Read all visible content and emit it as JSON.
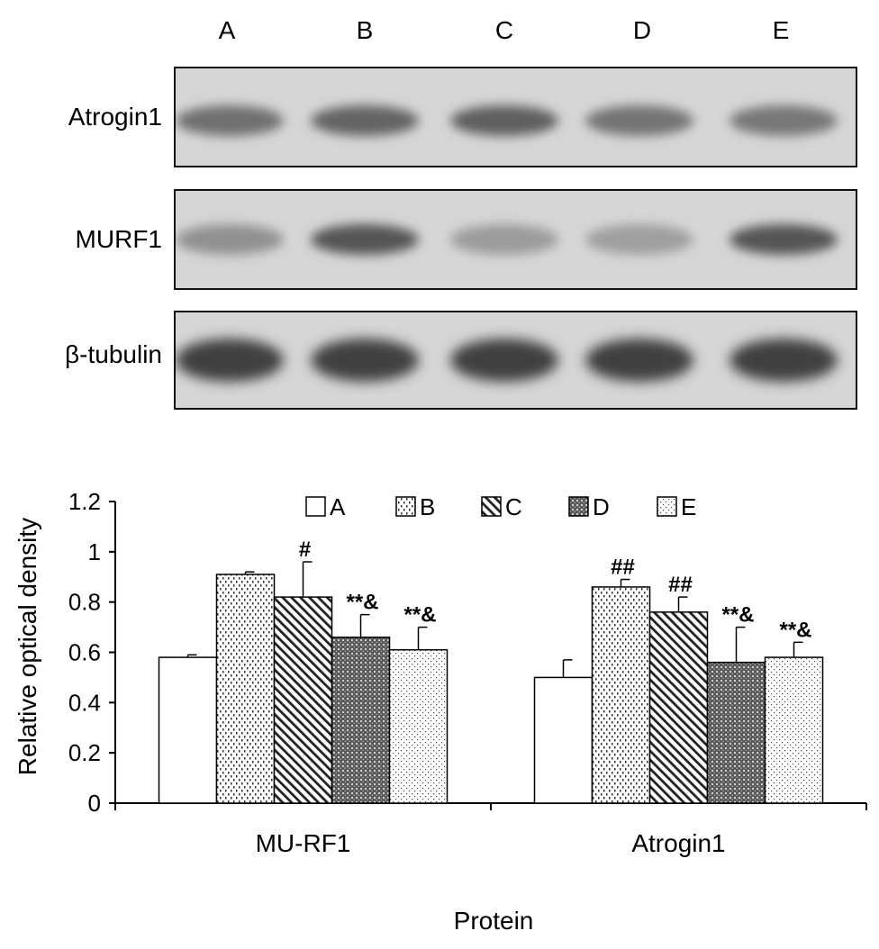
{
  "blot": {
    "lanes": [
      "A",
      "B",
      "C",
      "D",
      "E"
    ],
    "rows": [
      {
        "label": "Atrogin1",
        "intensity": [
          0.72,
          0.78,
          0.8,
          0.7,
          0.68
        ]
      },
      {
        "label": "MURF1",
        "intensity": [
          0.55,
          0.85,
          0.5,
          0.48,
          0.85
        ]
      },
      {
        "label": "β-tubulin",
        "intensity": [
          0.95,
          0.95,
          0.95,
          0.95,
          0.95
        ]
      }
    ]
  },
  "chart_data": {
    "type": "bar",
    "categories": [
      "MU-RF1",
      "Atrogin1"
    ],
    "series": [
      {
        "name": "A",
        "values": [
          0.58,
          0.5
        ],
        "errors": [
          0.01,
          0.07
        ],
        "annotations": [
          "",
          ""
        ],
        "pattern": "none"
      },
      {
        "name": "B",
        "values": [
          0.91,
          0.86
        ],
        "errors": [
          0.01,
          0.03
        ],
        "annotations": [
          "",
          "##"
        ],
        "pattern": "dash-dots"
      },
      {
        "name": "C",
        "values": [
          0.82,
          0.76
        ],
        "errors": [
          0.14,
          0.06
        ],
        "annotations": [
          "#",
          "##"
        ],
        "pattern": "diagonal"
      },
      {
        "name": "D",
        "values": [
          0.66,
          0.56
        ],
        "errors": [
          0.09,
          0.14
        ],
        "annotations": [
          "**&",
          "**&"
        ],
        "pattern": "dark-crosshatch"
      },
      {
        "name": "E",
        "values": [
          0.61,
          0.58
        ],
        "errors": [
          0.09,
          0.06
        ],
        "annotations": [
          "**&",
          "**&"
        ],
        "pattern": "sparse-dots"
      }
    ],
    "xlabel": "Protein",
    "ylabel": "Relative optical density",
    "ylim": [
      0,
      1.2
    ],
    "yticks": [
      "0",
      "0.2",
      "0.4",
      "0.6",
      "0.8",
      "1",
      "1.2"
    ],
    "legend_position": "top"
  }
}
